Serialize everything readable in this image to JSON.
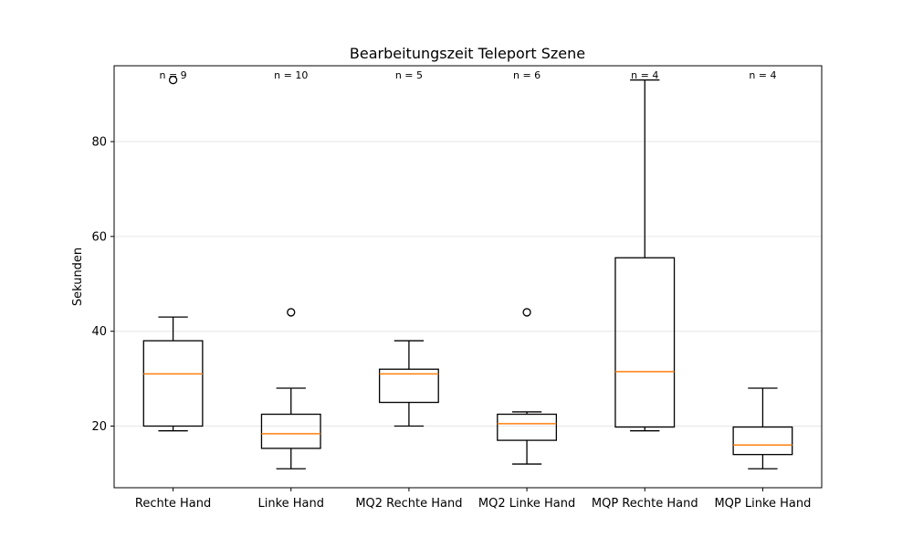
{
  "chart_data": {
    "type": "box",
    "title": "Bearbeitungszeit Teleport Szene",
    "xlabel": "",
    "ylabel": "Sekunden",
    "ylim": [
      7,
      96
    ],
    "yticks": [
      20,
      40,
      60,
      80
    ],
    "grid": "horizontal",
    "colors": {
      "box": "#000000",
      "median": "#ff7f0e",
      "grid": "#e6e6e6"
    },
    "categories": [
      "Rechte Hand",
      "Linke Hand",
      "MQ2 Rechte Hand",
      "MQ2 Linke Hand",
      "MQP Rechte Hand",
      "MQP Linke Hand"
    ],
    "counts": [
      "n = 9",
      "n = 10",
      "n = 5",
      "n = 6",
      "n = 4",
      "n = 4"
    ],
    "boxes": [
      {
        "whisker_low": 19,
        "q1": 20,
        "median": 31,
        "q3": 38,
        "whisker_high": 43,
        "outliers": [
          93
        ]
      },
      {
        "whisker_low": 11,
        "q1": 15.3,
        "median": 18.4,
        "q3": 22.5,
        "whisker_high": 28,
        "outliers": [
          44
        ]
      },
      {
        "whisker_low": 20,
        "q1": 25,
        "median": 31,
        "q3": 32,
        "whisker_high": 38,
        "outliers": []
      },
      {
        "whisker_low": 12,
        "q1": 17,
        "median": 20.5,
        "q3": 22.5,
        "whisker_high": 23,
        "outliers": [
          44
        ]
      },
      {
        "whisker_low": 19,
        "q1": 19.8,
        "median": 31.5,
        "q3": 55.5,
        "whisker_high": 93,
        "outliers": []
      },
      {
        "whisker_low": 11,
        "q1": 14,
        "median": 16,
        "q3": 19.8,
        "whisker_high": 28,
        "outliers": []
      }
    ]
  }
}
